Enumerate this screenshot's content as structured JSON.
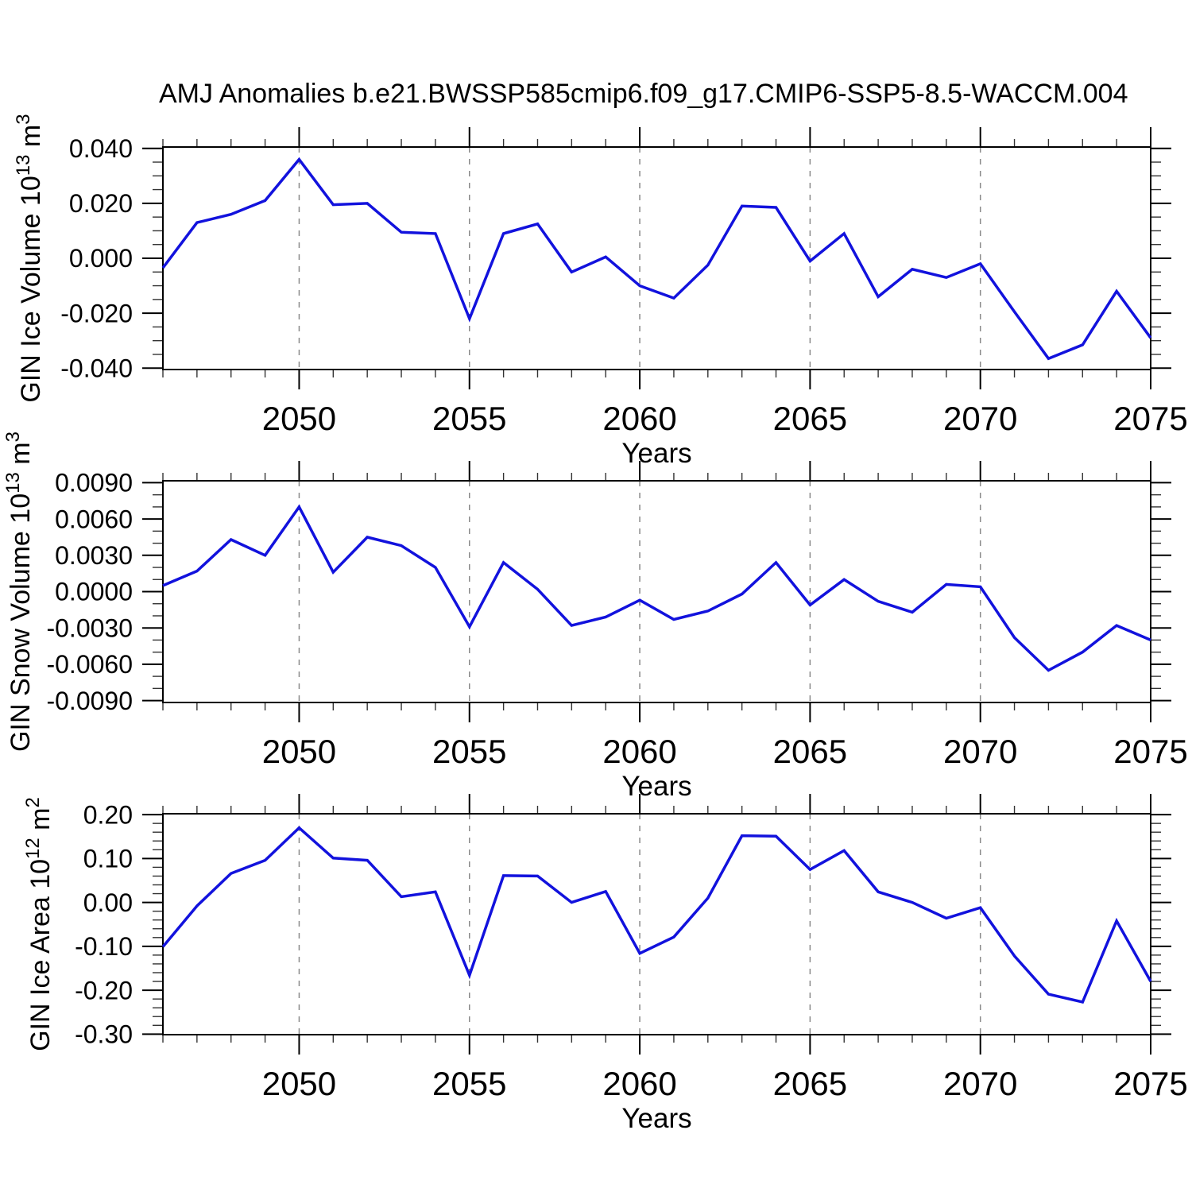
{
  "title": "AMJ Anomalies b.e21.BWSSP585cmip6.f09_g17.CMIP6-SSP5-8.5-WACCM.004",
  "colors": {
    "line": "#1212dd",
    "grid": "#8a8a8a",
    "axis": "#000000",
    "text": "#000000"
  },
  "chart_data": {
    "type": "line",
    "title": "AMJ Anomalies b.e21.BWSSP585cmip6.f09_g17.CMIP6-SSP5-8.5-WACCM.004",
    "xlabel": "Years",
    "legend": "none",
    "grid": "vertical-dashed",
    "xlim": [
      2046,
      2075
    ],
    "x_major_tick_labels": [
      "2050",
      "2055",
      "2060",
      "2065",
      "2070",
      "2075"
    ],
    "x_major_tick_values": [
      2050,
      2055,
      2060,
      2065,
      2070,
      2075
    ],
    "x_minor_step": 1,
    "grid_years": [
      2050,
      2055,
      2060,
      2065,
      2070
    ],
    "years": [
      2046,
      2047,
      2048,
      2049,
      2050,
      2051,
      2052,
      2053,
      2054,
      2055,
      2056,
      2057,
      2058,
      2059,
      2060,
      2061,
      2062,
      2063,
      2064,
      2065,
      2066,
      2067,
      2068,
      2069,
      2070,
      2071,
      2072,
      2073,
      2074,
      2075
    ],
    "panels": [
      {
        "name": "GIN Ice Volume",
        "ylabel": "GIN Ice Volume 10¹³ m³",
        "ylabel_parts": [
          {
            "t": "GIN Ice Volume 10"
          },
          {
            "t": "13",
            "sup": true
          },
          {
            "t": " m"
          },
          {
            "t": "3",
            "sup": true
          }
        ],
        "ylim": [
          -0.0405,
          0.0405
        ],
        "y_major_tick_labels": [
          "0.040",
          "0.020",
          "0.000",
          "-0.020",
          "-0.040"
        ],
        "y_major_tick_values": [
          0.04,
          0.02,
          0.0,
          -0.02,
          -0.04
        ],
        "y_minor_step": 0.005,
        "values": [
          -0.0035,
          0.013,
          0.016,
          0.021,
          0.036,
          0.0195,
          0.02,
          0.0095,
          0.009,
          -0.022,
          0.009,
          0.0125,
          -0.005,
          0.0005,
          -0.01,
          -0.0145,
          -0.0025,
          0.019,
          0.0185,
          -0.001,
          0.009,
          -0.014,
          -0.004,
          -0.007,
          -0.002,
          -0.0195,
          -0.0365,
          -0.0315,
          -0.012,
          -0.029
        ]
      },
      {
        "name": "GIN Snow Volume",
        "ylabel": "GIN Snow Volume 10¹³ m³",
        "ylabel_parts": [
          {
            "t": "GIN Snow Volume 10"
          },
          {
            "t": "13",
            "sup": true
          },
          {
            "t": " m"
          },
          {
            "t": "3",
            "sup": true
          }
        ],
        "ylim": [
          -0.00916,
          0.00916
        ],
        "y_major_tick_labels": [
          "0.0090",
          "0.0060",
          "0.0030",
          "0.0000",
          "-0.0030",
          "-0.0060",
          "-0.0090"
        ],
        "y_major_tick_values": [
          0.009,
          0.006,
          0.003,
          0.0,
          -0.003,
          -0.006,
          -0.009
        ],
        "y_minor_step": 0.001,
        "values": [
          0.0005,
          0.0017,
          0.0043,
          0.003,
          0.007,
          0.0016,
          0.0045,
          0.0038,
          0.002,
          -0.0029,
          0.0024,
          0.0002,
          -0.0028,
          -0.0021,
          -0.0007,
          -0.0023,
          -0.0016,
          -0.0002,
          0.0024,
          -0.0011,
          0.001,
          -0.0008,
          -0.0017,
          0.0006,
          0.0004,
          -0.0038,
          -0.0065,
          -0.005,
          -0.0028,
          -0.004
        ]
      },
      {
        "name": "GIN Ice Area",
        "ylabel": "GIN Ice Area 10¹² m²",
        "ylabel_parts": [
          {
            "t": "GIN Ice Area 10"
          },
          {
            "t": "12",
            "sup": true
          },
          {
            "t": " m"
          },
          {
            "t": "2",
            "sup": true
          }
        ],
        "ylim": [
          -0.3012,
          0.202
        ],
        "y_major_tick_labels": [
          "0.20",
          "0.10",
          "0.00",
          "-0.10",
          "-0.20",
          "-0.30"
        ],
        "y_major_tick_values": [
          0.2,
          0.1,
          0.0,
          -0.1,
          -0.2,
          -0.3
        ],
        "y_minor_step": 0.02,
        "values": [
          -0.101,
          -0.008,
          0.066,
          0.096,
          0.17,
          0.101,
          0.096,
          0.013,
          0.024,
          -0.166,
          0.061,
          0.06,
          0.0,
          0.025,
          -0.116,
          -0.079,
          0.01,
          0.152,
          0.151,
          0.075,
          0.118,
          0.024,
          0.0,
          -0.036,
          -0.012,
          -0.122,
          -0.209,
          -0.227,
          -0.042,
          -0.18
        ]
      }
    ]
  }
}
